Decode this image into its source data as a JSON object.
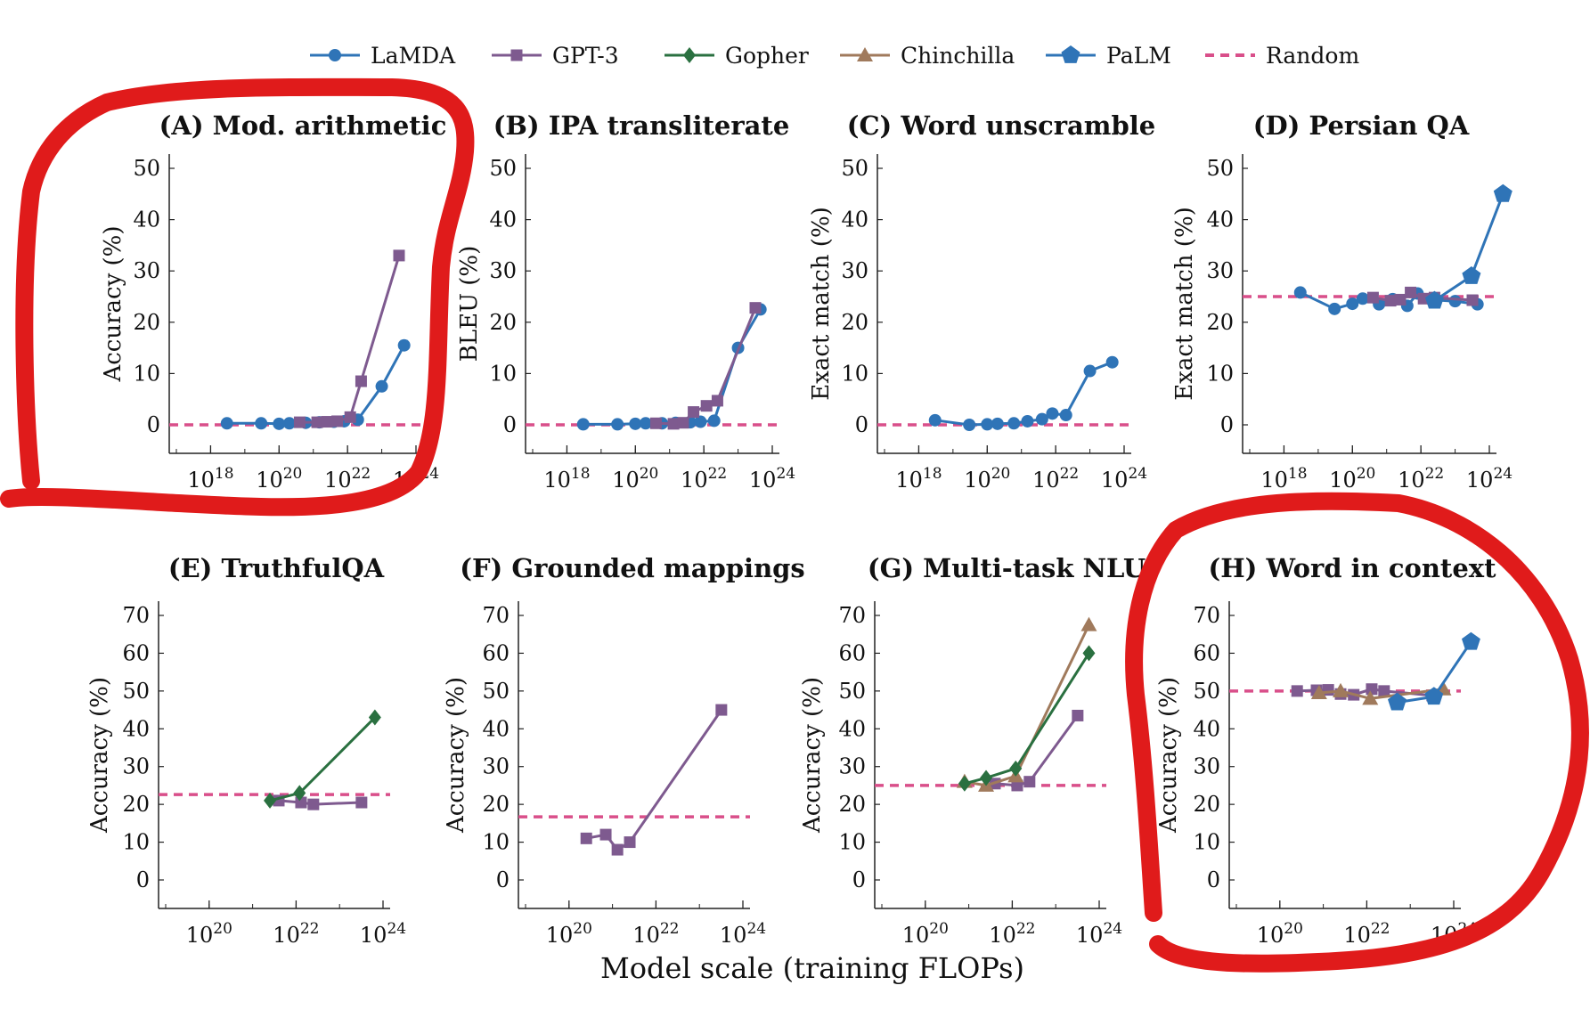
{
  "figure": {
    "xlabel": "Model scale (training FLOPs)",
    "series_styles": {
      "LaMDA": {
        "color": "#2f74b7",
        "marker": "circle"
      },
      "GPT-3": {
        "color": "#7e5a8f",
        "marker": "square"
      },
      "Gopher": {
        "color": "#2a7040",
        "marker": "diamond"
      },
      "Chinchilla": {
        "color": "#a07a5c",
        "marker": "triangle"
      },
      "PaLM": {
        "color": "#2f74b7",
        "marker": "pentagon"
      },
      "Random": {
        "color": "#d94f8a",
        "marker": "dashed-line"
      }
    },
    "legend": [
      "LaMDA",
      "GPT-3",
      "Gopher",
      "Chinchilla",
      "PaLM",
      "Random"
    ],
    "legend_position": "top-center",
    "annotations": "red hand-drawn circles around panels A and H"
  },
  "chart_data": [
    {
      "type": "line",
      "title": "(A) Mod. arithmetic",
      "ylabel": "Accuracy (%)",
      "xscale": "log",
      "xlim": [
        1e+17,
        1e+24
      ],
      "xticks": [
        1e+18,
        1e+20,
        1e+22,
        1e+24
      ],
      "ylim": [
        0,
        50
      ],
      "yticks": [
        0,
        10,
        20,
        30,
        40,
        50
      ],
      "random": 0,
      "series": [
        {
          "name": "LaMDA",
          "x": [
            3e+18,
            3e+19,
            1e+20,
            2e+20,
            6e+20,
            1.5e+21,
            4e+21,
            8e+21,
            2e+22,
            1e+23,
            4.5e+23
          ],
          "y": [
            0.3,
            0.3,
            0.2,
            0.3,
            0.4,
            0.5,
            0.6,
            0.7,
            1,
            7.5,
            15.5
          ]
        },
        {
          "name": "GPT-3",
          "x": [
            4e+20,
            1.3e+21,
            2.5e+21,
            5e+21,
            1.2e+22,
            2.5e+22,
            3.2e+23
          ],
          "y": [
            0.5,
            0.5,
            0.6,
            0.7,
            1.5,
            8.5,
            33
          ]
        }
      ]
    },
    {
      "type": "line",
      "title": "(B) IPA transliterate",
      "ylabel": "BLEU (%)",
      "xscale": "log",
      "xlim": [
        1e+17,
        1e+24
      ],
      "xticks": [
        1e+18,
        1e+20,
        1e+22,
        1e+24
      ],
      "ylim": [
        0,
        50
      ],
      "yticks": [
        0,
        10,
        20,
        30,
        40,
        50
      ],
      "random": 0,
      "series": [
        {
          "name": "LaMDA",
          "x": [
            3e+18,
            3e+19,
            1e+20,
            2e+20,
            6e+20,
            1.5e+21,
            4e+21,
            8e+21,
            2e+22,
            1e+23,
            4.5e+23
          ],
          "y": [
            0.1,
            0.1,
            0.2,
            0.3,
            0.3,
            0.4,
            0.5,
            0.6,
            0.8,
            15,
            22.5
          ]
        },
        {
          "name": "GPT-3",
          "x": [
            4e+20,
            1.3e+21,
            2.5e+21,
            5e+21,
            1.2e+22,
            2.5e+22,
            3.2e+23
          ],
          "y": [
            0.3,
            0.2,
            0.4,
            2.5,
            3.7,
            4.7,
            22.8
          ]
        }
      ]
    },
    {
      "type": "line",
      "title": "(C) Word unscramble",
      "ylabel": "Exact match (%)",
      "xscale": "log",
      "xlim": [
        1e+17,
        1e+24
      ],
      "xticks": [
        1e+18,
        1e+20,
        1e+22,
        1e+24
      ],
      "ylim": [
        0,
        50
      ],
      "yticks": [
        0,
        10,
        20,
        30,
        40,
        50
      ],
      "random": 0,
      "series": [
        {
          "name": "LaMDA",
          "x": [
            3e+18,
            3e+19,
            1e+20,
            2e+20,
            6e+20,
            1.5e+21,
            4e+21,
            8e+21,
            2e+22,
            1e+23,
            4.5e+23
          ],
          "y": [
            0.9,
            0,
            0.1,
            0.2,
            0.3,
            0.7,
            1.1,
            2.2,
            1.9,
            10.5,
            12.2
          ]
        }
      ]
    },
    {
      "type": "line",
      "title": "(D) Persian QA",
      "ylabel": "Exact match (%)",
      "xscale": "log",
      "xlim": [
        1e+17,
        1e+24
      ],
      "xticks": [
        1e+18,
        1e+20,
        1e+22,
        1e+24
      ],
      "ylim": [
        0,
        50
      ],
      "yticks": [
        0,
        10,
        20,
        30,
        40,
        50
      ],
      "random": 25,
      "series": [
        {
          "name": "LaMDA",
          "x": [
            3e+18,
            3e+19,
            1e+20,
            2e+20,
            6e+20,
            1.5e+21,
            4e+21,
            8e+21,
            2e+22,
            1e+23,
            4.5e+23
          ],
          "y": [
            25.8,
            22.6,
            23.6,
            24.6,
            23.5,
            24.5,
            23.2,
            25.6,
            24.4,
            24.1,
            23.5
          ]
        },
        {
          "name": "GPT-3",
          "x": [
            4e+20,
            1.3e+21,
            2.5e+21,
            5e+21,
            1.2e+22,
            2.5e+22,
            3.2e+23
          ],
          "y": [
            24.8,
            24.2,
            24.4,
            25.8,
            24.6,
            24.8,
            24.3
          ]
        },
        {
          "name": "PaLM",
          "x": [
            2.5e+22,
            3e+23,
            2.5e+24
          ],
          "y": [
            24.2,
            29,
            45
          ]
        }
      ]
    },
    {
      "type": "line",
      "title": "(E) TruthfulQA",
      "ylabel": "Accuracy (%)",
      "xscale": "log",
      "xlim": [
        1e+19,
        1e+24
      ],
      "xticks": [
        1e+20,
        1e+22,
        1e+24
      ],
      "ylim": [
        0,
        70
      ],
      "yticks": [
        0,
        10,
        20,
        30,
        40,
        50,
        60,
        70
      ],
      "random": 22.6,
      "series": [
        {
          "name": "GPT-3",
          "x": [
            4e+21,
            1.3e+22,
            2.5e+22,
            3.2e+23
          ],
          "y": [
            21,
            20.5,
            20,
            20.5
          ]
        },
        {
          "name": "Gopher",
          "x": [
            2.5e+21,
            1.2e+22,
            6.5e+23
          ],
          "y": [
            21,
            23,
            43
          ]
        }
      ]
    },
    {
      "type": "line",
      "title": "(F) Grounded mappings",
      "ylabel": "Accuracy (%)",
      "xscale": "log",
      "xlim": [
        1e+19,
        1e+24
      ],
      "xticks": [
        1e+20,
        1e+22,
        1e+24
      ],
      "ylim": [
        0,
        70
      ],
      "yticks": [
        0,
        10,
        20,
        30,
        40,
        50,
        60,
        70
      ],
      "random": 16.7,
      "series": [
        {
          "name": "GPT-3",
          "x": [
            2.5e+20,
            7e+20,
            1.3e+21,
            2.5e+21,
            3.2e+23
          ],
          "y": [
            11,
            12,
            8,
            10,
            45
          ]
        }
      ]
    },
    {
      "type": "line",
      "title": "(G) Multi-task NLU",
      "ylabel": "Accuracy (%)",
      "xscale": "log",
      "xlim": [
        1e+19,
        1e+24
      ],
      "xticks": [
        1e+20,
        1e+22,
        1e+24
      ],
      "ylim": [
        0,
        70
      ],
      "yticks": [
        0,
        10,
        20,
        30,
        40,
        50,
        60,
        70
      ],
      "random": 25,
      "series": [
        {
          "name": "GPT-3",
          "x": [
            4e+21,
            1.3e+22,
            2.5e+22,
            3.2e+23
          ],
          "y": [
            25.5,
            25,
            26,
            43.5
          ]
        },
        {
          "name": "Chinchilla",
          "x": [
            8e+20,
            2.5e+21,
            1.2e+22,
            5.8e+23
          ],
          "y": [
            26,
            25,
            27.5,
            67.5
          ]
        },
        {
          "name": "Gopher",
          "x": [
            8e+20,
            2.5e+21,
            1.2e+22,
            5.8e+23
          ],
          "y": [
            25.5,
            27,
            29.5,
            60
          ]
        }
      ]
    },
    {
      "type": "line",
      "title": "(H) Word in context",
      "ylabel": "Accuracy (%)",
      "xscale": "log",
      "xlim": [
        1e+19,
        1e+24
      ],
      "xticks": [
        1e+20,
        1e+22,
        1e+24
      ],
      "ylim": [
        0,
        70
      ],
      "yticks": [
        0,
        10,
        20,
        30,
        40,
        50,
        60,
        70
      ],
      "random": 50,
      "series": [
        {
          "name": "GPT-3",
          "x": [
            2.5e+20,
            7e+20,
            1.3e+21,
            2.5e+21,
            5e+21,
            1.3e+22,
            2.5e+22,
            3.2e+23
          ],
          "y": [
            50,
            50.2,
            50.3,
            49.2,
            49,
            50.5,
            50,
            48.8
          ]
        },
        {
          "name": "Chinchilla",
          "x": [
            8e+20,
            2.5e+21,
            1.2e+22,
            5.8e+23
          ],
          "y": [
            49.5,
            50,
            48,
            50.5
          ]
        },
        {
          "name": "PaLM",
          "x": [
            5e+22,
            3.5e+23,
            2.5e+24
          ],
          "y": [
            47,
            48.5,
            63
          ]
        }
      ]
    }
  ]
}
